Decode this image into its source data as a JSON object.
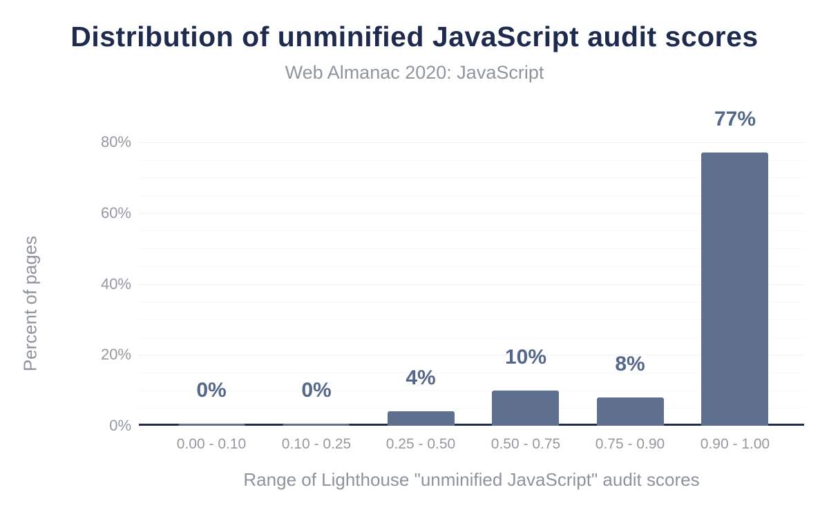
{
  "chart_data": {
    "type": "bar",
    "title": "Distribution of unminified JavaScript audit scores",
    "subtitle": "Web Almanac 2020: JavaScript",
    "categories": [
      "0.00 - 0.10",
      "0.10 - 0.25",
      "0.25 - 0.50",
      "0.50 - 0.75",
      "0.75 - 0.90",
      "0.90 - 1.00"
    ],
    "values": [
      0,
      0,
      4,
      10,
      8,
      77
    ],
    "value_labels": [
      "0%",
      "0%",
      "4%",
      "10%",
      "8%",
      "77%"
    ],
    "xlabel": "Range of Lighthouse \"unminified JavaScript\" audit scores",
    "ylabel": "Percent of pages",
    "ylim": [
      0,
      85
    ],
    "y_ticks": [
      {
        "value": 0,
        "label": "0%"
      },
      {
        "value": 20,
        "label": "20%"
      },
      {
        "value": 40,
        "label": "40%"
      },
      {
        "value": 60,
        "label": "60%"
      },
      {
        "value": 80,
        "label": "80%"
      }
    ],
    "grid": {
      "orientation": "horizontal",
      "style": "dotted",
      "minor_step_pct": 5,
      "major_step_pct": 20,
      "max_line_pct": 80
    },
    "legend": "none",
    "colors": {
      "background": "#ffffff",
      "bar": "#5f708e",
      "data_label": "#55678a",
      "title": "#1f2b4e",
      "subtitle": "#8f959e",
      "tick_label": "#94999f",
      "axis_title": "#8e939b",
      "axis_line": "#1f2b4e",
      "grid_minor": "#f1f1f4",
      "grid_major": "#e3e4e9"
    }
  }
}
